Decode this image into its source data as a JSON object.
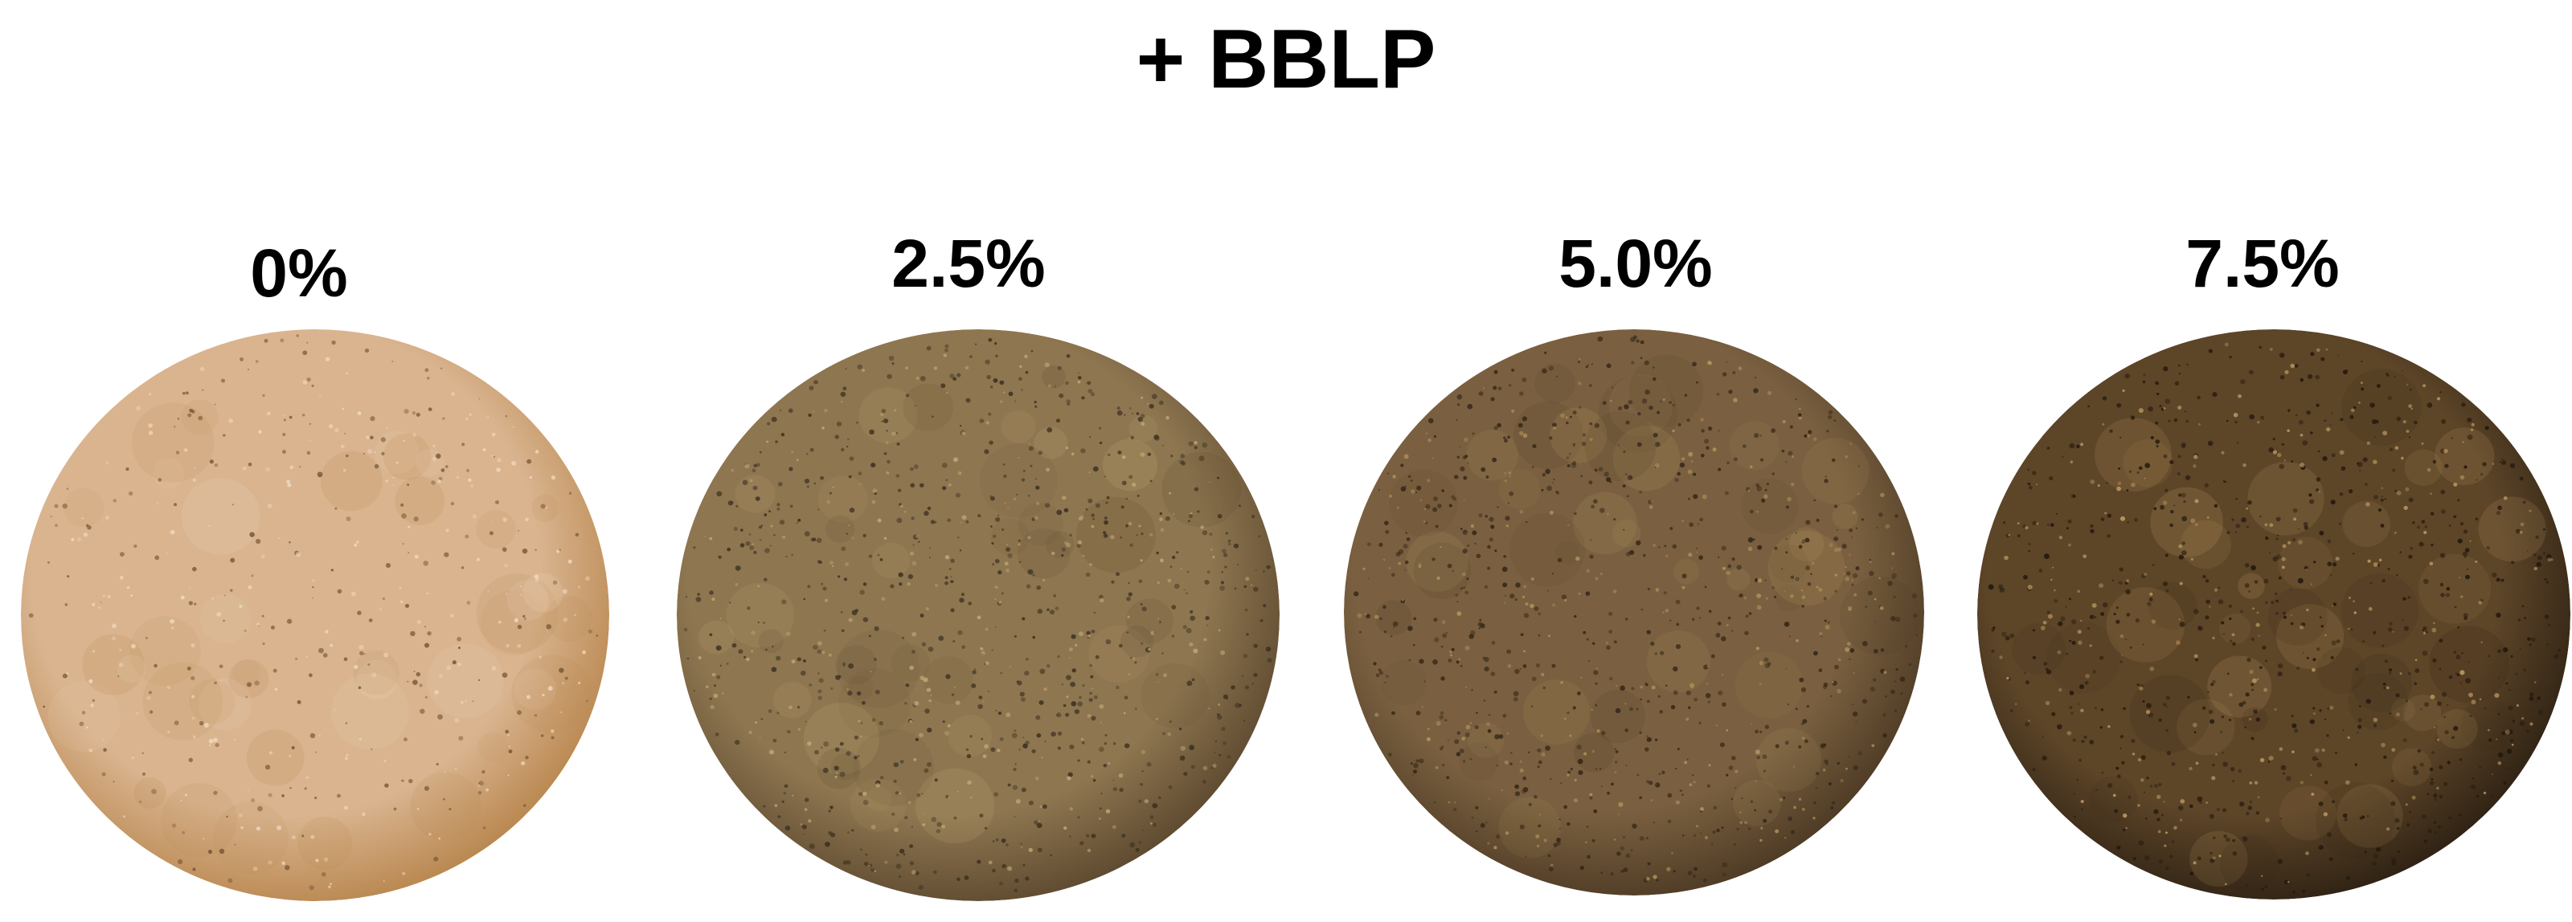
{
  "title": "+ BBLP",
  "samples": [
    {
      "label": "0%",
      "base_color": "#d9b48f",
      "edge_color": "#b9874f",
      "speck_color": "#7a5a3a",
      "light_speck_color": "#f1dcc3"
    },
    {
      "label": "2.5%",
      "base_color": "#8e7650",
      "edge_color": "#5e4a30",
      "speck_color": "#3c3222",
      "light_speck_color": "#c7ad7c"
    },
    {
      "label": "5.0%",
      "base_color": "#7a6040",
      "edge_color": "#4e3b25",
      "speck_color": "#332618",
      "light_speck_color": "#b8995f"
    },
    {
      "label": "7.5%",
      "base_color": "#5d4528",
      "edge_color": "#2f2214",
      "speck_color": "#22180e",
      "light_speck_color": "#c9a46a"
    }
  ]
}
